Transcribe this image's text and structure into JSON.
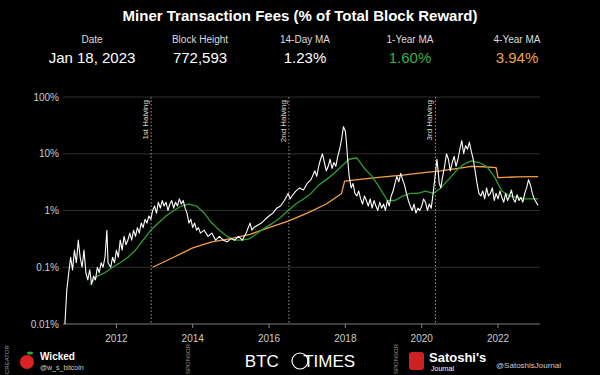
{
  "chart_data": {
    "type": "line",
    "title": "Miner Transaction Fees (% of Total Block Reward)",
    "stats": [
      {
        "label": "Date",
        "value": "Jan 18, 2023"
      },
      {
        "label": "Block Height",
        "value": "772,593"
      },
      {
        "label": "14-Day MA",
        "value": "1.23%"
      },
      {
        "label": "1-Year MA",
        "value": "1.60%",
        "color": "#3fae3f"
      },
      {
        "label": "4-Year MA",
        "value": "3.94%",
        "color": "#f5a04c"
      }
    ],
    "log": "y",
    "grid": true,
    "xlim": [
      2010.6,
      2023.1
    ],
    "xticks": [
      2012,
      2014,
      2016,
      2018,
      2020,
      2022
    ],
    "ylim": [
      0.01,
      100
    ],
    "yticks": [
      {
        "value": 0.01,
        "label": "0.01%"
      },
      {
        "value": 0.1,
        "label": "0.1%"
      },
      {
        "value": 1,
        "label": "1%"
      },
      {
        "value": 10,
        "label": "10%"
      },
      {
        "value": 100,
        "label": "100%"
      }
    ],
    "annotations": [
      {
        "x": 2012.91,
        "label": "1st Halving"
      },
      {
        "x": 2016.52,
        "label": "2nd Halving"
      },
      {
        "x": 2020.36,
        "label": "3rd Halving"
      }
    ],
    "series": [
      {
        "name": "14-Day MA",
        "color": "#ffffff",
        "x": [
          2010.65,
          2010.7,
          2010.75,
          2010.8,
          2010.85,
          2010.9,
          2010.95,
          2011.0,
          2011.05,
          2011.1,
          2011.15,
          2011.2,
          2011.25,
          2011.3,
          2011.35,
          2011.4,
          2011.45,
          2011.5,
          2011.55,
          2011.6,
          2011.65,
          2011.7,
          2011.75,
          2011.78,
          2011.85,
          2011.9,
          2011.95,
          2012.0,
          2012.05,
          2012.1,
          2012.15,
          2012.2,
          2012.25,
          2012.3,
          2012.35,
          2012.4,
          2012.45,
          2012.5,
          2012.55,
          2012.6,
          2012.65,
          2012.7,
          2012.75,
          2012.8,
          2012.85,
          2012.9,
          2012.95,
          2013.0,
          2013.05,
          2013.1,
          2013.15,
          2013.2,
          2013.25,
          2013.3,
          2013.35,
          2013.4,
          2013.45,
          2013.5,
          2013.55,
          2013.6,
          2013.65,
          2013.7,
          2013.75,
          2013.8,
          2013.85,
          2013.9,
          2013.95,
          2014.0,
          2014.05,
          2014.1,
          2014.15,
          2014.2,
          2014.3,
          2014.4,
          2014.5,
          2014.6,
          2014.7,
          2014.8,
          2014.9,
          2015.0,
          2015.1,
          2015.2,
          2015.3,
          2015.4,
          2015.5,
          2015.55,
          2015.6,
          2015.7,
          2015.8,
          2015.9,
          2016.0,
          2016.1,
          2016.2,
          2016.3,
          2016.4,
          2016.5,
          2016.55,
          2016.6,
          2016.7,
          2016.8,
          2016.9,
          2017.0,
          2017.1,
          2017.2,
          2017.25,
          2017.3,
          2017.35,
          2017.4,
          2017.45,
          2017.5,
          2017.55,
          2017.6,
          2017.65,
          2017.7,
          2017.75,
          2017.8,
          2017.85,
          2017.9,
          2017.95,
          2018.0,
          2018.03,
          2018.06,
          2018.1,
          2018.15,
          2018.2,
          2018.25,
          2018.3,
          2018.35,
          2018.4,
          2018.45,
          2018.5,
          2018.55,
          2018.6,
          2018.65,
          2018.7,
          2018.75,
          2018.8,
          2018.85,
          2018.9,
          2018.95,
          2019.0,
          2019.05,
          2019.1,
          2019.15,
          2019.2,
          2019.25,
          2019.3,
          2019.35,
          2019.4,
          2019.45,
          2019.5,
          2019.55,
          2019.6,
          2019.65,
          2019.7,
          2019.75,
          2019.8,
          2019.85,
          2019.9,
          2019.95,
          2020.0,
          2020.05,
          2020.1,
          2020.15,
          2020.2,
          2020.25,
          2020.3,
          2020.35,
          2020.4,
          2020.43,
          2020.46,
          2020.5,
          2020.55,
          2020.6,
          2020.65,
          2020.7,
          2020.75,
          2020.8,
          2020.85,
          2020.9,
          2020.95,
          2021.0,
          2021.05,
          2021.1,
          2021.15,
          2021.2,
          2021.25,
          2021.3,
          2021.35,
          2021.4,
          2021.45,
          2021.5,
          2021.55,
          2021.6,
          2021.65,
          2021.7,
          2021.75,
          2021.8,
          2021.85,
          2021.9,
          2021.95,
          2022.0,
          2022.05,
          2022.1,
          2022.15,
          2022.2,
          2022.25,
          2022.3,
          2022.35,
          2022.4,
          2022.45,
          2022.5,
          2022.55,
          2022.6,
          2022.65,
          2022.7,
          2022.75,
          2022.8,
          2022.85,
          2022.9,
          2022.95,
          2023.0,
          2023.05
        ],
        "values": [
          0.01,
          0.04,
          0.08,
          0.15,
          0.09,
          0.2,
          0.12,
          0.3,
          0.15,
          0.1,
          0.2,
          0.08,
          0.06,
          0.09,
          0.05,
          0.07,
          0.06,
          0.1,
          0.08,
          0.12,
          0.1,
          0.15,
          0.45,
          0.12,
          0.1,
          0.15,
          0.12,
          0.2,
          0.15,
          0.3,
          0.2,
          0.35,
          0.25,
          0.3,
          0.4,
          0.3,
          0.45,
          0.35,
          0.5,
          0.4,
          0.6,
          0.5,
          0.7,
          0.6,
          0.8,
          0.7,
          1.0,
          1.2,
          0.9,
          1.4,
          1.1,
          1.5,
          1.2,
          1.4,
          1.0,
          1.3,
          1.5,
          1.1,
          1.4,
          1.2,
          1.6,
          1.3,
          1.5,
          1.1,
          0.9,
          0.6,
          0.7,
          0.5,
          0.6,
          0.45,
          0.5,
          0.4,
          0.45,
          0.35,
          0.4,
          0.3,
          0.35,
          0.3,
          0.28,
          0.32,
          0.3,
          0.35,
          0.3,
          0.4,
          0.6,
          0.45,
          0.5,
          0.55,
          0.6,
          0.7,
          0.8,
          0.9,
          1.1,
          1.2,
          1.5,
          2.0,
          1.6,
          1.8,
          2.2,
          2.5,
          2.3,
          3.0,
          3.5,
          5.0,
          4.0,
          6.0,
          8.0,
          10.0,
          7.0,
          5.0,
          6.0,
          8.0,
          5.5,
          7.0,
          6.0,
          9.0,
          12.0,
          18.0,
          30.0,
          25.0,
          15.0,
          8.0,
          4.0,
          2.5,
          3.0,
          2.0,
          1.8,
          2.2,
          1.6,
          1.3,
          1.8,
          1.5,
          1.2,
          1.6,
          1.1,
          1.5,
          1.2,
          1.0,
          1.4,
          1.1,
          1.3,
          1.0,
          1.5,
          1.2,
          1.8,
          2.2,
          3.0,
          4.0,
          3.2,
          4.5,
          3.5,
          2.8,
          2.0,
          1.5,
          1.2,
          1.0,
          1.3,
          0.9,
          1.1,
          1.0,
          1.2,
          1.6,
          1.4,
          1.0,
          1.3,
          1.1,
          2.0,
          4.0,
          8.0,
          5.0,
          3.0,
          2.5,
          4.0,
          6.0,
          10.0,
          8.0,
          5.0,
          7.0,
          9.0,
          6.0,
          8.0,
          12.0,
          17.0,
          10.0,
          14.0,
          12.0,
          16.0,
          11.0,
          8.0,
          5.0,
          3.0,
          2.0,
          1.8,
          2.2,
          1.6,
          2.5,
          1.8,
          2.0,
          2.5,
          1.5,
          2.0,
          1.6,
          2.2,
          1.7,
          1.4,
          2.0,
          1.5,
          1.8,
          2.3,
          1.6,
          1.4,
          1.9,
          1.5,
          1.7,
          1.4,
          2.0,
          2.5,
          3.5,
          2.8,
          2.0,
          1.6,
          1.4,
          1.23
        ]
      },
      {
        "name": "1-Year MA",
        "color": "#2f9e35",
        "x": [
          2011.3,
          2011.5,
          2011.7,
          2011.9,
          2012.1,
          2012.3,
          2012.5,
          2012.7,
          2012.9,
          2013.1,
          2013.3,
          2013.5,
          2013.7,
          2013.9,
          2014.1,
          2014.3,
          2014.5,
          2014.7,
          2014.9,
          2015.1,
          2015.3,
          2015.5,
          2015.7,
          2015.9,
          2016.1,
          2016.3,
          2016.5,
          2016.7,
          2016.9,
          2017.1,
          2017.3,
          2017.5,
          2017.7,
          2017.9,
          2018.1,
          2018.3,
          2018.5,
          2018.7,
          2018.9,
          2019.1,
          2019.3,
          2019.5,
          2019.7,
          2019.9,
          2020.1,
          2020.3,
          2020.5,
          2020.7,
          2020.9,
          2021.1,
          2021.3,
          2021.5,
          2021.7,
          2021.9,
          2022.1,
          2022.3,
          2022.5,
          2022.7,
          2022.9,
          2023.05
        ],
        "values": [
          0.05,
          0.07,
          0.08,
          0.1,
          0.12,
          0.15,
          0.2,
          0.3,
          0.45,
          0.6,
          0.8,
          1.0,
          1.2,
          1.3,
          1.2,
          0.9,
          0.6,
          0.45,
          0.35,
          0.3,
          0.3,
          0.32,
          0.4,
          0.5,
          0.6,
          0.75,
          1.0,
          1.3,
          1.6,
          2.0,
          2.8,
          3.5,
          4.5,
          6.0,
          8.0,
          8.5,
          5.5,
          4.0,
          2.5,
          1.5,
          1.5,
          1.8,
          2.0,
          2.0,
          2.2,
          2.0,
          2.5,
          3.5,
          5.0,
          6.5,
          7.5,
          7.0,
          6.0,
          4.0,
          2.2,
          1.8,
          1.7,
          1.6,
          1.6,
          1.6
        ]
      },
      {
        "name": "4-Year MA",
        "color": "#f5a04c",
        "x": [
          2012.95,
          2013.5,
          2014.0,
          2014.5,
          2015.0,
          2015.5,
          2016.0,
          2016.5,
          2017.0,
          2017.5,
          2017.9,
          2017.98,
          2018.5,
          2019.0,
          2019.5,
          2020.0,
          2020.5,
          2021.0,
          2021.3,
          2021.6,
          2021.95,
          2022.0,
          2022.5,
          2023.05
        ],
        "values": [
          0.1,
          0.15,
          0.22,
          0.28,
          0.32,
          0.38,
          0.5,
          0.65,
          0.9,
          1.3,
          2.0,
          3.3,
          3.6,
          3.9,
          4.2,
          4.6,
          5.0,
          5.6,
          6.0,
          5.9,
          5.7,
          3.8,
          3.9,
          3.94
        ]
      }
    ],
    "credits": [
      {
        "role": "CREATOR",
        "texts": [
          "Wicked",
          "@w_s_bitcoin"
        ]
      },
      {
        "role": "SPONSOR",
        "texts": [
          "BTC TIMES"
        ]
      },
      {
        "role": "SPONSOR",
        "texts": [
          "Satoshi's",
          "Journal",
          "@SatoshisJournal"
        ]
      }
    ]
  }
}
